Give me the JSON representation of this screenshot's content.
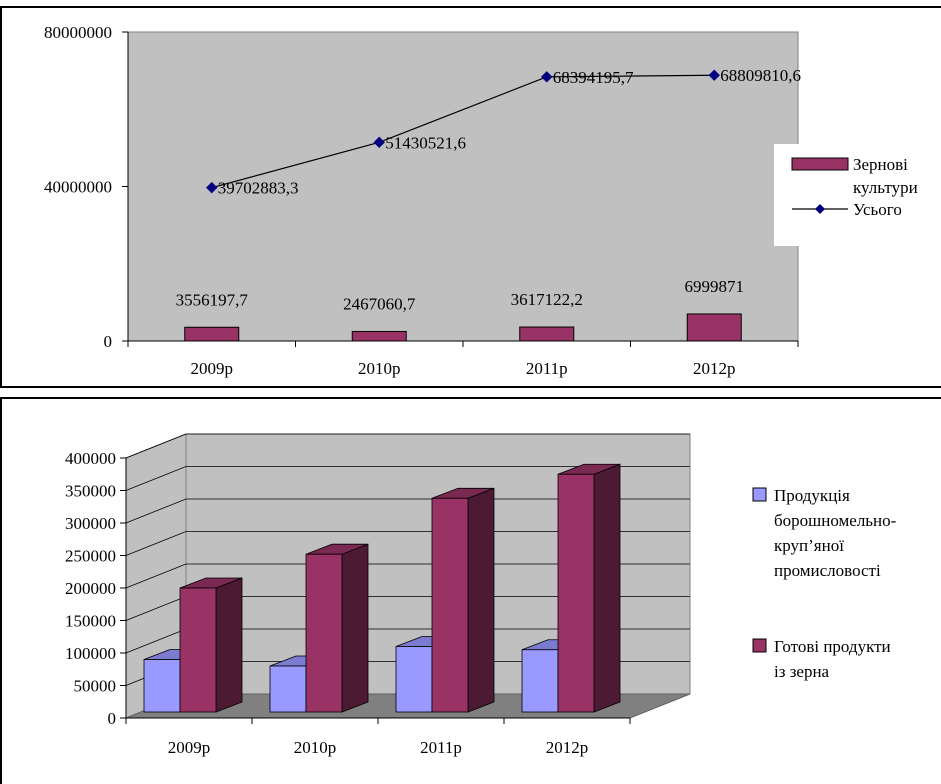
{
  "colors": {
    "plot_bg": "#c0c0c0",
    "bar_maroon": "#993366",
    "bar_maroon_side": "#4d1a33",
    "bar_maroon_top": "#7a2952",
    "bar_lilac": "#9999ff",
    "bar_lilac_side": "#5c5cb0",
    "bar_lilac_top": "#7b7bd0",
    "line_navy": "#000080",
    "floor_gray": "#808080"
  },
  "chart_data": [
    {
      "type": "bar",
      "categories": [
        "2009р",
        "2010р",
        "2011р",
        "2012р"
      ],
      "ylim": [
        0,
        80000000
      ],
      "yticks": [
        "0",
        "40000000",
        "80000000"
      ],
      "grid": false,
      "legend_position": "right",
      "series": [
        {
          "name": "Зернові культури",
          "type": "bar",
          "values": [
            3556197.7,
            2467060.7,
            3617122.2,
            6999871
          ],
          "labels": [
            "3556197,7",
            "2467060,7",
            "3617122,2",
            "6999871"
          ]
        },
        {
          "name": "Усього",
          "type": "line",
          "marker": "diamond",
          "values": [
            39702883.3,
            51430521.6,
            68394195.7,
            68809810.6
          ],
          "labels": [
            "39702883,3",
            "51430521,6",
            "68394195,7",
            "68809810,6"
          ]
        }
      ],
      "legend": [
        "Зернові\nкультури",
        "Усього"
      ]
    },
    {
      "type": "bar",
      "style": "3d-clustered",
      "categories": [
        "2009р",
        "2010р",
        "2011р",
        "2012р"
      ],
      "ylim": [
        0,
        400000
      ],
      "yticks": [
        "0",
        "50000",
        "100000",
        "150000",
        "200000",
        "250000",
        "300000",
        "350000",
        "400000"
      ],
      "grid": true,
      "legend_position": "right",
      "series": [
        {
          "name": "Продукція борошномельно-круп’яної промисловості",
          "values": [
            90000,
            80000,
            110000,
            105000
          ]
        },
        {
          "name": "Готові продукти із зерна",
          "values": [
            200000,
            252000,
            338000,
            375000
          ]
        }
      ],
      "legend": [
        [
          "Продукція",
          "борошномельно-",
          "круп’яної",
          "промисловості"
        ],
        [
          "Готові продукти",
          "із зерна"
        ]
      ]
    }
  ]
}
